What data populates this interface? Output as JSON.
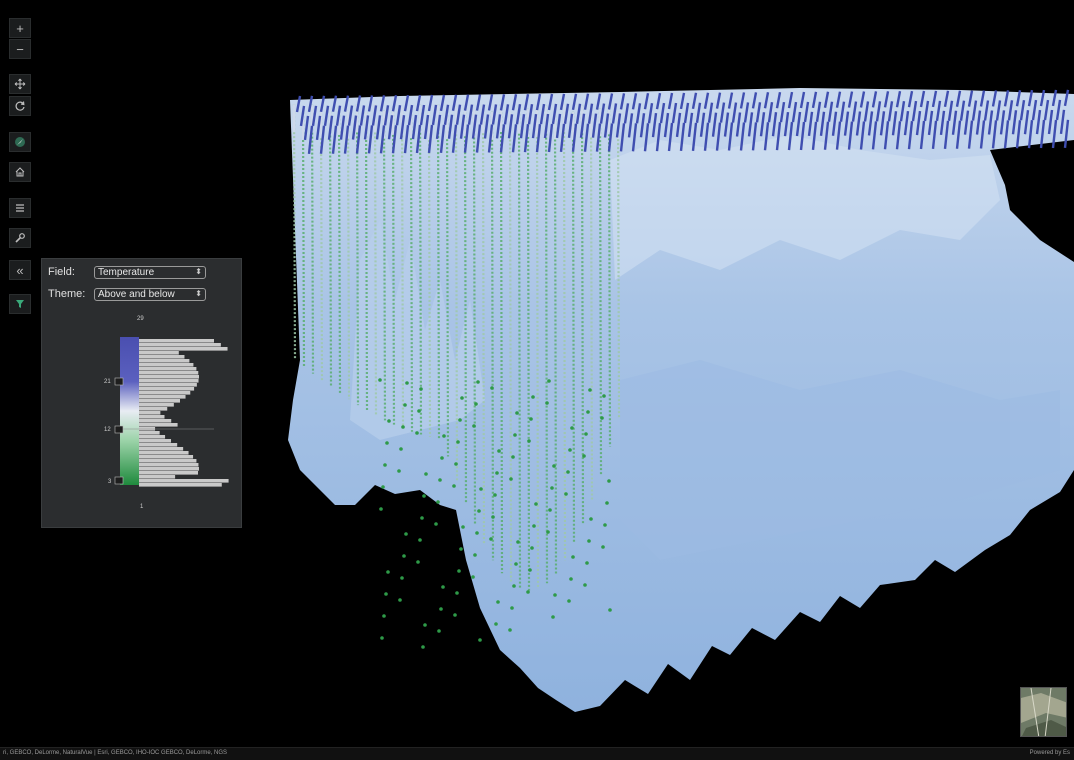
{
  "toolbar": {
    "buttons": [
      {
        "name": "zoom-in-button",
        "icon": "plus-icon"
      },
      {
        "name": "zoom-out-button",
        "icon": "minus-icon"
      },
      {
        "name": "pan-button",
        "icon": "pan-arrows-icon"
      },
      {
        "name": "rotate-button",
        "icon": "rotate-icon"
      },
      {
        "name": "compass-button",
        "icon": "compass-icon"
      },
      {
        "name": "home-button",
        "icon": "home-icon"
      },
      {
        "name": "layers-button",
        "icon": "list-icon"
      },
      {
        "name": "tools-button",
        "icon": "wrench-icon"
      },
      {
        "name": "collapse-button",
        "icon": "double-chevron-left-icon"
      },
      {
        "name": "filter-button",
        "icon": "filter-icon"
      }
    ]
  },
  "legend": {
    "field_label": "Field:",
    "field_value": "Temperature",
    "theme_label": "Theme:",
    "theme_value": "Above and below",
    "max_label": "29",
    "handle_high": "21",
    "handle_mid": "12",
    "handle_low": "3",
    "min_label": "1"
  },
  "footer": {
    "attribution": "ri, GEBCO, DeLorme, NaturalVue | Esri, GEBCO, IHO-IOC GEBCO, DeLorme, NGS",
    "powered_by": "Powered by Es"
  },
  "colors": {
    "background": "#000000",
    "surface": "#a7c3e6",
    "above_points": "#3f4eb0",
    "below_points": "#2e9a48",
    "panel": "#2b2d2f"
  }
}
